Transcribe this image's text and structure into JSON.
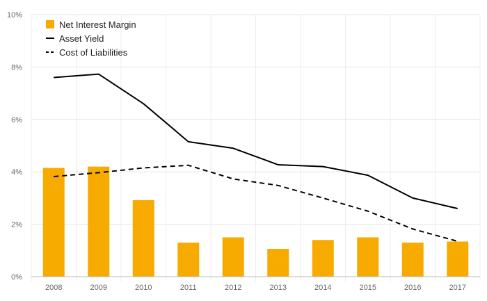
{
  "chart_data": {
    "type": "bar",
    "categories": [
      "2008",
      "2009",
      "2010",
      "2011",
      "2012",
      "2013",
      "2014",
      "2015",
      "2016",
      "2017"
    ],
    "series": [
      {
        "name": "Net Interest Margin",
        "kind": "bar",
        "color": "#f7ab00",
        "values": [
          4.15,
          4.2,
          2.92,
          1.3,
          1.5,
          1.06,
          1.4,
          1.5,
          1.3,
          1.34
        ]
      },
      {
        "name": "Asset Yield",
        "kind": "line",
        "style": "solid",
        "color": "#000000",
        "values": [
          7.6,
          7.73,
          6.6,
          5.15,
          4.9,
          4.27,
          4.2,
          3.87,
          3.0,
          2.6
        ]
      },
      {
        "name": "Cost of Liabilities",
        "kind": "line",
        "style": "dashed",
        "color": "#000000",
        "values": [
          3.82,
          3.97,
          4.15,
          4.25,
          3.73,
          3.48,
          3.0,
          2.5,
          1.82,
          1.35
        ]
      }
    ],
    "yticks": [
      "0%",
      "2%",
      "4%",
      "6%",
      "8%",
      "10%"
    ],
    "ylim": [
      0,
      10
    ],
    "grid": true,
    "legend_position": "top-left"
  }
}
